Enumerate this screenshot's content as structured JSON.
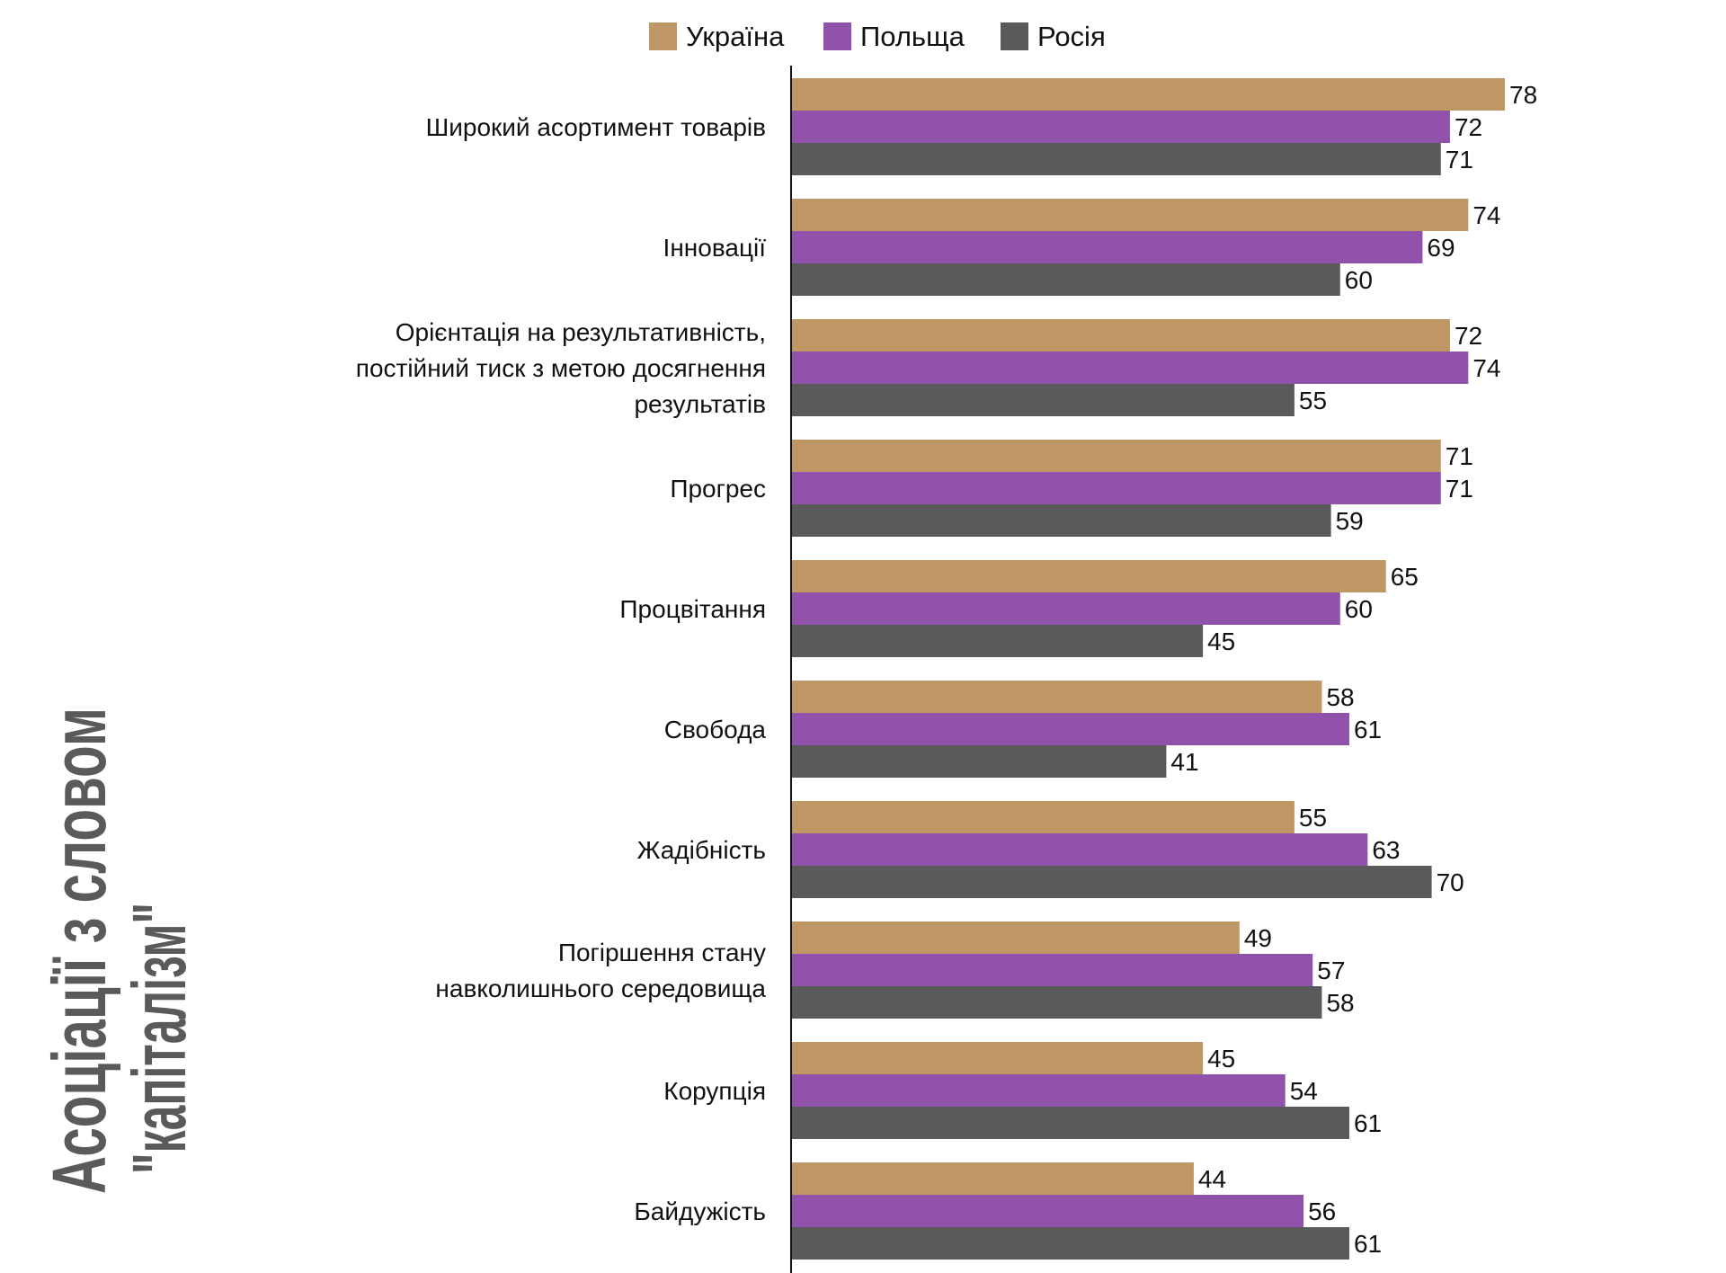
{
  "chart_data": {
    "type": "bar",
    "orientation": "horizontal",
    "title": "Асоціації з словом \"капіталізм\"",
    "title_lines": [
      "Асоціації з словом",
      "\"капіталізм\""
    ],
    "legend_position": "top",
    "grid": false,
    "xlim": [
      0,
      100
    ],
    "categories": [
      [
        "Широкий асортимент товарів"
      ],
      [
        "Інновації"
      ],
      [
        "Орієнтація на результативність,",
        "постійний тиск з метою досягнення",
        "результатів"
      ],
      [
        "Прогрес"
      ],
      [
        "Процвітання"
      ],
      [
        "Свобода"
      ],
      [
        "Жадібність"
      ],
      [
        "Погіршення стану",
        "навколишнього середовища"
      ],
      [
        "Корупція"
      ],
      [
        "Байдужість"
      ]
    ],
    "series": [
      {
        "name": "Україна",
        "color": "#bf9765",
        "values": [
          78,
          74,
          72,
          71,
          65,
          58,
          55,
          49,
          45,
          44
        ]
      },
      {
        "name": "Польща",
        "color": "#9152ab",
        "values": [
          72,
          69,
          74,
          71,
          60,
          61,
          63,
          57,
          54,
          56
        ]
      },
      {
        "name": "Росія",
        "color": "#5a5a5a",
        "values": [
          71,
          60,
          55,
          59,
          45,
          41,
          70,
          58,
          61,
          61
        ]
      }
    ]
  }
}
